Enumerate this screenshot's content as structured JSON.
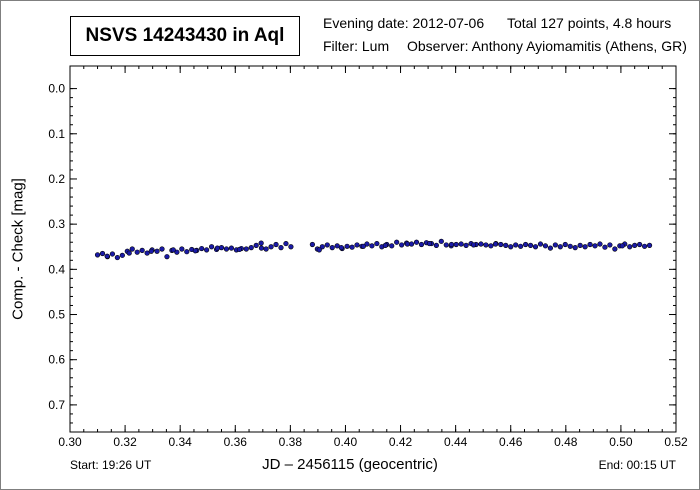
{
  "title": "NSVS 14243430 in Aql",
  "evening_date": "Evening date: 2012-07-06",
  "total": "Total 127 points, 4.8 hours",
  "filter": "Filter: Lum",
  "observer": "Observer: Anthony Ayiomamitis (Athens, GR)",
  "start": "Start: 19:26 UT",
  "end": "End: 00:15 UT",
  "chart_data": {
    "type": "scatter",
    "xlabel": "JD – 2456115  (geocentric)",
    "ylabel": "Comp. - Check [mag]",
    "xlim": [
      0.3,
      0.52
    ],
    "ylim": [
      -0.05,
      0.76
    ],
    "y_inverted": true,
    "x_ticks": [
      "0.30",
      "0.32",
      "0.34",
      "0.36",
      "0.38",
      "0.40",
      "0.42",
      "0.44",
      "0.46",
      "0.48",
      "0.50",
      "0.52"
    ],
    "y_ticks": [
      "0.0",
      "0.1",
      "0.2",
      "0.3",
      "0.4",
      "0.5",
      "0.6",
      "0.7"
    ],
    "grid": false,
    "marker_color": "#1a1aa6",
    "x": [
      0.31,
      0.3118,
      0.3136,
      0.3154,
      0.3172,
      0.319,
      0.3208,
      0.3226,
      0.3244,
      0.3262,
      0.328,
      0.3298,
      0.3316,
      0.3334,
      0.3352,
      0.337,
      0.3388,
      0.3406,
      0.3424,
      0.3442,
      0.346,
      0.3478,
      0.3496,
      0.3514,
      0.3532,
      0.355,
      0.3568,
      0.3586,
      0.3604,
      0.3622,
      0.364,
      0.3658,
      0.3676,
      0.3694,
      0.3712,
      0.373,
      0.3748,
      0.3766,
      0.3784,
      0.3802,
      0.388,
      0.3898,
      0.3916,
      0.3934,
      0.3952,
      0.397,
      0.3988,
      0.4006,
      0.4024,
      0.4042,
      0.406,
      0.4078,
      0.4096,
      0.4114,
      0.4132,
      0.415,
      0.4168,
      0.4186,
      0.4204,
      0.4222,
      0.424,
      0.4258,
      0.4276,
      0.4294,
      0.4312,
      0.433,
      0.4348,
      0.4366,
      0.4384,
      0.4402,
      0.442,
      0.4438,
      0.4456,
      0.4474,
      0.4492,
      0.451,
      0.4528,
      0.4546,
      0.4564,
      0.4582,
      0.46,
      0.4618,
      0.4636,
      0.4654,
      0.4672,
      0.469,
      0.4708,
      0.4726,
      0.4744,
      0.4762,
      0.478,
      0.4798,
      0.4816,
      0.4834,
      0.4852,
      0.487,
      0.4888,
      0.4906,
      0.4924,
      0.4942,
      0.496,
      0.4978,
      0.4996,
      0.5014,
      0.5032,
      0.505,
      0.5068,
      0.5086,
      0.5104,
      0.3135,
      0.3215,
      0.3295,
      0.3375,
      0.3455,
      0.3535,
      0.3615,
      0.3695,
      0.3905,
      0.3985,
      0.4065,
      0.4145,
      0.4225,
      0.4305,
      0.4385,
      0.4465,
      0.4545,
      0.5005
    ],
    "y": [
      0.368,
      0.365,
      0.372,
      0.366,
      0.374,
      0.369,
      0.36,
      0.355,
      0.362,
      0.358,
      0.364,
      0.357,
      0.36,
      0.355,
      0.372,
      0.358,
      0.362,
      0.355,
      0.361,
      0.356,
      0.358,
      0.354,
      0.357,
      0.35,
      0.356,
      0.352,
      0.355,
      0.353,
      0.357,
      0.354,
      0.355,
      0.352,
      0.347,
      0.342,
      0.355,
      0.35,
      0.345,
      0.352,
      0.343,
      0.35,
      0.345,
      0.355,
      0.35,
      0.346,
      0.352,
      0.348,
      0.354,
      0.349,
      0.351,
      0.346,
      0.349,
      0.344,
      0.348,
      0.343,
      0.35,
      0.345,
      0.348,
      0.34,
      0.346,
      0.342,
      0.344,
      0.34,
      0.345,
      0.341,
      0.343,
      0.347,
      0.338,
      0.346,
      0.348,
      0.345,
      0.344,
      0.347,
      0.343,
      0.345,
      0.344,
      0.346,
      0.348,
      0.343,
      0.345,
      0.347,
      0.35,
      0.346,
      0.349,
      0.345,
      0.347,
      0.35,
      0.344,
      0.348,
      0.353,
      0.346,
      0.35,
      0.345,
      0.349,
      0.352,
      0.347,
      0.35,
      0.345,
      0.348,
      0.344,
      0.351,
      0.346,
      0.355,
      0.348,
      0.344,
      0.35,
      0.347,
      0.345,
      0.349,
      0.347,
      0.371,
      0.364,
      0.36,
      0.357,
      0.359,
      0.353,
      0.356,
      0.353,
      0.357,
      0.352,
      0.349,
      0.347,
      0.344,
      0.343,
      0.345,
      0.346,
      0.344,
      0.348
    ]
  }
}
